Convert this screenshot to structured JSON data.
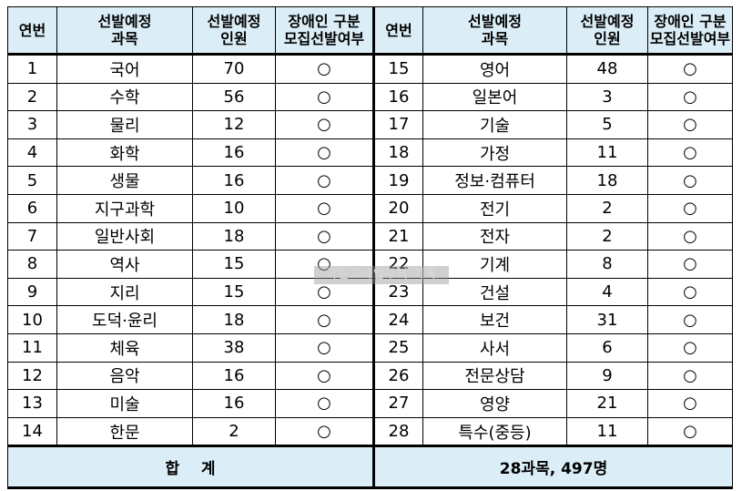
{
  "headers": {
    "no": "연번",
    "subject": [
      "선발예정",
      "과목"
    ],
    "count": [
      "선발예정",
      "인원"
    ],
    "disabled": [
      "장애인 구분",
      "모집선발여부"
    ]
  },
  "left_rows": [
    {
      "no": "1",
      "subject": "국어",
      "count": "70",
      "mark": "○"
    },
    {
      "no": "2",
      "subject": "수학",
      "count": "56",
      "mark": "○"
    },
    {
      "no": "3",
      "subject": "물리",
      "count": "12",
      "mark": "○"
    },
    {
      "no": "4",
      "subject": "화학",
      "count": "16",
      "mark": "○"
    },
    {
      "no": "5",
      "subject": "생물",
      "count": "16",
      "mark": "○"
    },
    {
      "no": "6",
      "subject": "지구과학",
      "count": "10",
      "mark": "○"
    },
    {
      "no": "7",
      "subject": "일반사회",
      "count": "18",
      "mark": "○"
    },
    {
      "no": "8",
      "subject": "역사",
      "count": "15",
      "mark": "○"
    },
    {
      "no": "9",
      "subject": "지리",
      "count": "15",
      "mark": "○"
    },
    {
      "no": "10",
      "subject": "도덕·윤리",
      "count": "18",
      "mark": "○"
    },
    {
      "no": "11",
      "subject": "체육",
      "count": "38",
      "mark": "○"
    },
    {
      "no": "12",
      "subject": "음악",
      "count": "16",
      "mark": "○"
    },
    {
      "no": "13",
      "subject": "미술",
      "count": "16",
      "mark": "○"
    },
    {
      "no": "14",
      "subject": "한문",
      "count": "2",
      "mark": "○"
    }
  ],
  "right_rows": [
    {
      "no": "15",
      "subject": "영어",
      "count": "48",
      "mark": "○"
    },
    {
      "no": "16",
      "subject": "일본어",
      "count": "3",
      "mark": "○"
    },
    {
      "no": "17",
      "subject": "기술",
      "count": "5",
      "mark": "○"
    },
    {
      "no": "18",
      "subject": "가정",
      "count": "11",
      "mark": "○"
    },
    {
      "no": "19",
      "subject": "정보·컴퓨터",
      "count": "18",
      "mark": "○"
    },
    {
      "no": "20",
      "subject": "전기",
      "count": "2",
      "mark": "○"
    },
    {
      "no": "21",
      "subject": "전자",
      "count": "2",
      "mark": "○"
    },
    {
      "no": "22",
      "subject": "기계",
      "count": "8",
      "mark": "○"
    },
    {
      "no": "23",
      "subject": "건설",
      "count": "4",
      "mark": "○"
    },
    {
      "no": "24",
      "subject": "보건",
      "count": "31",
      "mark": "○"
    },
    {
      "no": "25",
      "subject": "사서",
      "count": "6",
      "mark": "○"
    },
    {
      "no": "26",
      "subject": "전문상담",
      "count": "9",
      "mark": "○"
    },
    {
      "no": "27",
      "subject": "영양",
      "count": "21",
      "mark": "○"
    },
    {
      "no": "28",
      "subject": "특수(중등)",
      "count": "11",
      "mark": "○"
    }
  ],
  "footer": {
    "label": "합    계",
    "total": "28과목, 497명"
  },
  "watermark": "국민교사업무의 기록"
}
